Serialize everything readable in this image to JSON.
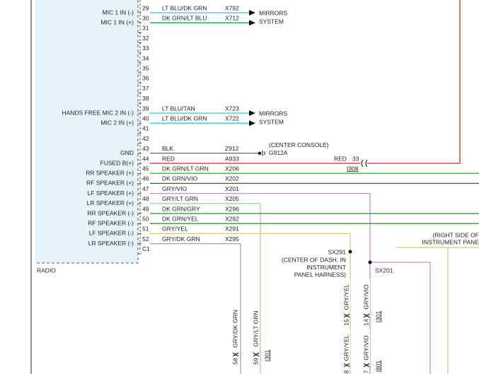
{
  "module": "RADIO",
  "pins": [
    {
      "number": "29",
      "label": "MIC 1 IN (-)",
      "wire": "LT BLU/DK GRN",
      "circuit": "X792",
      "stroke": "#33cccc"
    },
    {
      "number": "30",
      "label": "MIC 1 IN (+)",
      "wire": "DK GRN/LT BLU",
      "circuit": "X712",
      "stroke": "#22a05a"
    },
    {
      "number": "31"
    },
    {
      "number": "32"
    },
    {
      "number": "33"
    },
    {
      "number": "34"
    },
    {
      "number": "35"
    },
    {
      "number": "36"
    },
    {
      "number": "37"
    },
    {
      "number": "38"
    },
    {
      "number": "39",
      "label": "HANDS FREE MIC 2 IN (-)",
      "wire": "LT BLU/TAN",
      "circuit": "X723",
      "stroke": "#33cccc"
    },
    {
      "number": "40",
      "label": "MIC 2 IN (+)",
      "wire": "LT BLU/DK GRN",
      "circuit": "X722",
      "stroke": "#33cccc"
    },
    {
      "number": "41"
    },
    {
      "number": "42"
    },
    {
      "number": "43",
      "label": "GND",
      "wire": "BLK",
      "circuit": "Z912",
      "stroke": "#444444"
    },
    {
      "number": "44",
      "label": "FUSED B(+)",
      "wire": "RED",
      "circuit": "A933",
      "stroke": "#e02020"
    },
    {
      "number": "45",
      "label": "RR SPEAKER (+)",
      "wire": "DK GRN/LT GRN",
      "circuit": "X206",
      "stroke": "#33bb33"
    },
    {
      "number": "46",
      "label": "RF SPEAKER (+)",
      "wire": "DK GRN/VIO",
      "circuit": "X202",
      "stroke": "#2a6a3a"
    },
    {
      "number": "47",
      "label": "LF SPEAKER (+)",
      "wire": "GRY/VIO",
      "circuit": "X201",
      "stroke": "#cc88dd"
    },
    {
      "number": "48",
      "label": "LR SPEAKER (+)",
      "wire": "GRY/LT GRN",
      "circuit": "X205",
      "stroke": "#99dd99"
    },
    {
      "number": "49",
      "label": "RR SPEAKER (-)",
      "wire": "DK GRN/GRY",
      "circuit": "X296",
      "stroke": "#2f8f2f"
    },
    {
      "number": "50",
      "label": "RF SPEAKER (-)",
      "wire": "DK GRN/YEL",
      "circuit": "X292",
      "stroke": "#3a9a2a"
    },
    {
      "number": "51",
      "label": "LF SPEAKER (-)",
      "wire": "GRY/YEL",
      "circuit": "X291",
      "stroke": "#cccc88"
    },
    {
      "number": "52",
      "label": "LR SPEAKER (-)",
      "wire": "GRY/DK GRN",
      "circuit": "X295",
      "stroke": "#99aa99"
    },
    {
      "number": "C1"
    }
  ],
  "destinations": [
    [
      "MIRRORS",
      "SYSTEM"
    ],
    [
      "MIRRORS",
      "SYSTEM"
    ]
  ],
  "ground": {
    "location": "(CENTER CONSOLE)",
    "name": "G912A"
  },
  "red_connector": {
    "wire": "RED",
    "pin": "33",
    "connector": "I308"
  },
  "splices": [
    {
      "name": "SX291",
      "location": [
        "(CENTER OF DASH, IN",
        "INSTRUMENT",
        "PANEL HARNESS)"
      ]
    },
    {
      "name": "SX201"
    }
  ],
  "right_side": [
    "(RIGHT SIDE OF",
    "INSTRUMENT PANE"
  ],
  "bottom": [
    {
      "wire": "GRY/DK GRN",
      "pin": "58"
    },
    {
      "wire": "GRY/LT GRN",
      "pin": "59",
      "connector": "I301"
    },
    {
      "wire": "GRY/YEL",
      "pin": "15"
    },
    {
      "wire": "GRY/VIO",
      "pin": "14",
      "connector": "I301"
    },
    {
      "wire": "GRY/YEL",
      "pin": "8"
    },
    {
      "wire": "GRY/VIO",
      "pin": "7",
      "connector": "I801"
    }
  ]
}
